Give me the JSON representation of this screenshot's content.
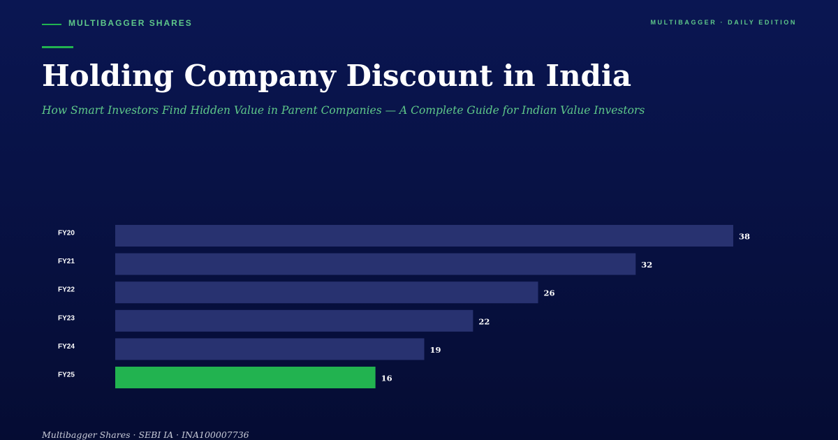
{
  "header": {
    "brand": "MULTIBAGGER SHARES",
    "edition": "MULTIBAGGER · DAILY EDITION"
  },
  "chart_data": {
    "type": "bar",
    "orientation": "horizontal",
    "title": "Holding Company Discount in India",
    "subtitle": "How Smart Investors Find Hidden Value in Parent Companies — A Complete Guide for Indian Value Investors",
    "categories": [
      "FY20",
      "FY21",
      "FY22",
      "FY23",
      "FY24",
      "FY25"
    ],
    "values": [
      38,
      32,
      26,
      22,
      19,
      16
    ],
    "colors": [
      "#283270",
      "#283270",
      "#283270",
      "#283270",
      "#283270",
      "#22b350"
    ]
  },
  "footer": {
    "text": "Multibagger Shares · SEBI IA · INA100007736"
  }
}
